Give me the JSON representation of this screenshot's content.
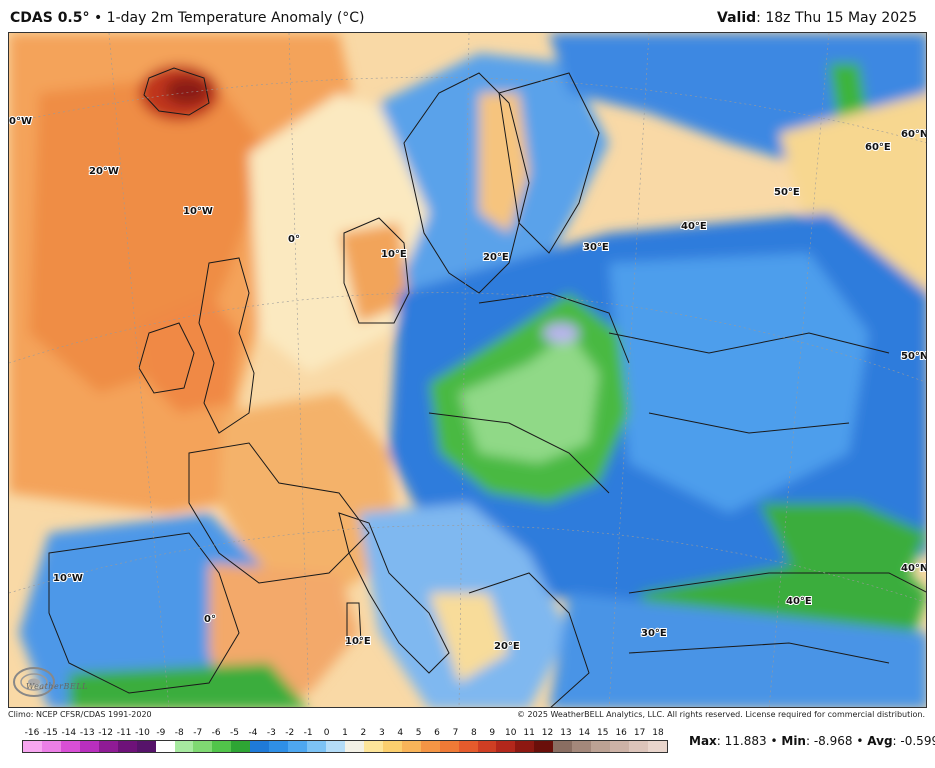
{
  "header": {
    "model": "CDAS 0.5°",
    "separator": "•",
    "description": "1-day 2m Temperature Anomaly (°C)",
    "valid_label": "Valid",
    "valid_value": ": 18z Thu 15 May 2025"
  },
  "map": {
    "lon_labels": [
      "0°W",
      "20°W",
      "10°W",
      "0°",
      "10°E",
      "20°E",
      "30°E",
      "40°E",
      "50°E",
      "60°E",
      "60°N",
      "50°N",
      "40°N",
      "10°W",
      "0°",
      "10°E",
      "20°E",
      "30°E",
      "40°E"
    ],
    "logo_text": "WeatherBELL"
  },
  "credits": {
    "left": "Climo: NCEP CFSR/CDAS 1991-2020",
    "right": "© 2025 WeatherBELL Analytics, LLC. All rights reserved. License required for commercial distribution."
  },
  "colorbar": {
    "labels": [
      "-16",
      "-15",
      "-14",
      "-13",
      "-12",
      "-11",
      "-10",
      "-9",
      "-8",
      "-7",
      "-6",
      "-5",
      "-4",
      "-3",
      "-2",
      "-1",
      "0",
      "1",
      "2",
      "3",
      "4",
      "5",
      "6",
      "7",
      "8",
      "9",
      "10",
      "11",
      "12",
      "13",
      "14",
      "15",
      "16",
      "17",
      "18"
    ],
    "colors": [
      "#f7a6f0",
      "#ec7fe6",
      "#d94fd6",
      "#b92fbe",
      "#8f1b95",
      "#6e1279",
      "#56136a",
      "#ffffff",
      "#a7e9a0",
      "#7fd872",
      "#51c44a",
      "#2ea534",
      "#1f7ad8",
      "#2f8fe6",
      "#4ea7f0",
      "#7cc2f4",
      "#b4dcf7",
      "#f3f1e6",
      "#fde59a",
      "#fbcf6e",
      "#f8b459",
      "#f49545",
      "#ef7a36",
      "#e55b2c",
      "#cf3e23",
      "#b3271b",
      "#8d1811",
      "#6a0f0a",
      "#8a6e62",
      "#a4887b",
      "#bca294",
      "#cdb2a6",
      "#dcc4ba",
      "#e9d5cc"
    ],
    "stats": {
      "max_label": "Max",
      "max_value": ": 11.883",
      "min_label": "Min",
      "min_value": ": -8.968",
      "avg_label": "Avg",
      "avg_value": ": -0.599",
      "sep": "•"
    }
  }
}
